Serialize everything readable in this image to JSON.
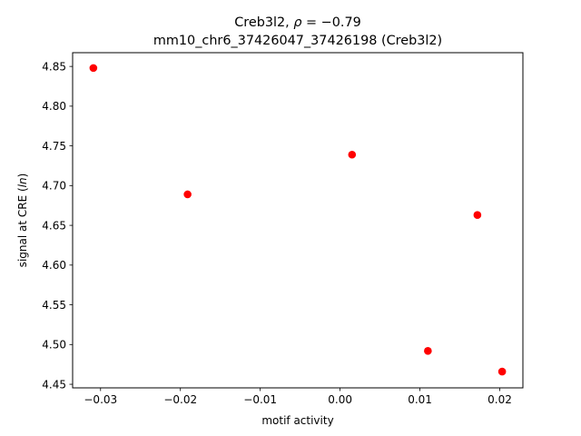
{
  "chart_data": {
    "type": "scatter",
    "title_line1_prefix": "Creb3l2, ",
    "title_line1_rho": "ρ",
    "title_line1_eq": " = −0.79",
    "title_line2": "mm10_chr6_37426047_37426198 (Creb3l2)",
    "xlabel": "motif activity",
    "ylabel_prefix": "signal at CRE (",
    "ylabel_italic": "ln",
    "ylabel_suffix": ")",
    "xlim": [
      -0.0335,
      0.0229
    ],
    "ylim": [
      4.4455,
      4.8673
    ],
    "xticks": [
      -0.03,
      -0.02,
      -0.01,
      0.0,
      0.01,
      0.02
    ],
    "xtick_labels": [
      "−0.03",
      "−0.02",
      "−0.01",
      "0.00",
      "0.01",
      "0.02"
    ],
    "yticks": [
      4.45,
      4.5,
      4.55,
      4.6,
      4.65,
      4.7,
      4.75,
      4.8,
      4.85
    ],
    "ytick_labels": [
      "4.45",
      "4.50",
      "4.55",
      "4.60",
      "4.65",
      "4.70",
      "4.75",
      "4.80",
      "4.85"
    ],
    "grid": false,
    "point_color": "#ff0000",
    "points": [
      {
        "x": -0.0309,
        "y": 4.848
      },
      {
        "x": -0.0191,
        "y": 4.689
      },
      {
        "x": 0.0015,
        "y": 4.739
      },
      {
        "x": 0.011,
        "y": 4.492
      },
      {
        "x": 0.0172,
        "y": 4.663
      },
      {
        "x": 0.0203,
        "y": 4.466
      }
    ]
  }
}
